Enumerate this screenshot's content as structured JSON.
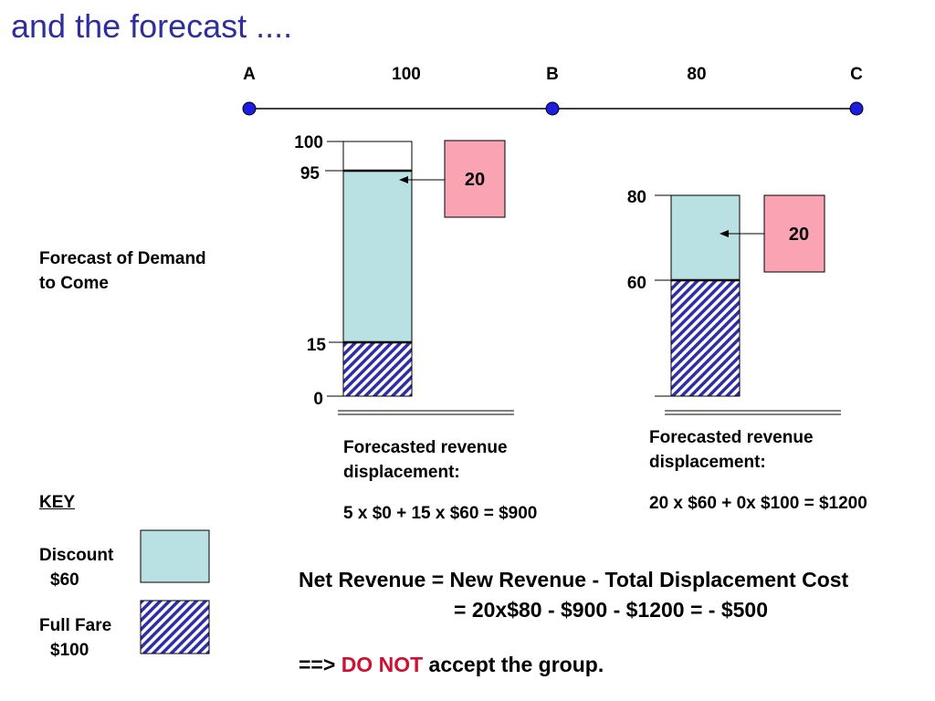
{
  "title": "and the forecast ....",
  "route": {
    "points": [
      {
        "label": "A"
      },
      {
        "label": "B"
      },
      {
        "label": "C"
      }
    ],
    "legs": [
      {
        "label": "100"
      },
      {
        "label": "80"
      }
    ]
  },
  "left_bar": {
    "ticks": [
      "100",
      "95",
      "15",
      "0"
    ],
    "group_label": "20",
    "caption_line1": "Forecasted revenue",
    "caption_line2": "displacement:",
    "formula": "5 x $0 + 15 x $60 = $900"
  },
  "right_bar": {
    "ticks": [
      "80",
      "60"
    ],
    "group_label": "20",
    "caption_line1": "Forecasted revenue",
    "caption_line2": "displacement:",
    "formula": "20 x $60 + 0x $100 = $1200"
  },
  "side_label_line1": "Forecast of Demand",
  "side_label_line2": "to Come",
  "key": {
    "heading": "KEY",
    "discount_line1": "Discount",
    "discount_line2": "$60",
    "fullfare_line1": "Full Fare",
    "fullfare_line2": "$100"
  },
  "net_revenue": {
    "line1": "Net Revenue = New Revenue - Total Displacement Cost",
    "line2": "=  20x$80  -  $900  -  $1200  = - $500",
    "conclusion_prefix": "==>",
    "conclusion_highlight": "DO NOT",
    "conclusion_suffix": "accept the group."
  },
  "colors": {
    "title": "#2e2e9c",
    "discount": "#b9e0e3",
    "full_fare_hatch": "#2e2ea8",
    "group_box": "#f9a3b3",
    "route_node": "#1d1de0",
    "highlight": "#cc1133"
  }
}
